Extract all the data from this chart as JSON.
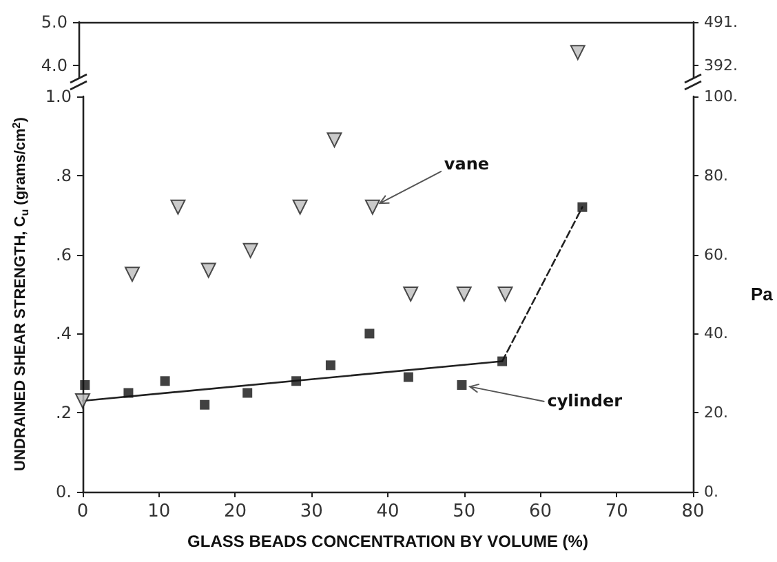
{
  "chart_data": [
    {
      "type": "scatter",
      "marker": "triangle",
      "series": [
        {
          "color": "#bdbdbd",
          "x": [
            65
          ],
          "values": [
            4.3
          ]
        }
      ],
      "xlim": [
        0,
        80
      ],
      "xticks": [
        0,
        10,
        20,
        30,
        40,
        50,
        60,
        70,
        80
      ],
      "ylim": [
        3.7,
        5.0
      ],
      "yticks": [
        {
          "value": 4.0,
          "label": "4.0"
        },
        {
          "value": 5.0,
          "label": "5.0"
        }
      ],
      "y2lim": [
        362,
        491
      ],
      "y2ticks": [
        {
          "value": 392,
          "label": "392."
        },
        {
          "value": 491,
          "label": "491."
        }
      ],
      "tick_labels": "y"
    },
    {
      "type": "scatter",
      "xlabel": "GLASS BEADS CONCENTRATION BY VOLUME (%)",
      "ylabel": "UNDRAINED SHEAR STRENGTH, C$_{u}$ (grams/cm$^{2}$)",
      "y2label": "Pa",
      "series": [
        {
          "color": "#bdbdbd",
          "marker": "triangle",
          "x": [
            0,
            6.5,
            12.5,
            16.5,
            22,
            28.5,
            33,
            38,
            43,
            50,
            55.4
          ],
          "values": [
            0.23,
            0.55,
            0.72,
            0.56,
            0.61,
            0.72,
            0.89,
            0.72,
            0.5,
            0.5,
            0.5
          ]
        },
        {
          "color": "#111111",
          "marker": "square",
          "x": [
            0.3,
            6,
            10.8,
            16,
            21.6,
            28,
            32.5,
            37.6,
            42.7,
            49.7,
            55,
            65.5
          ],
          "values": [
            0.27,
            0.25,
            0.28,
            0.22,
            0.25,
            0.28,
            0.32,
            0.4,
            0.29,
            0.27,
            0.33,
            0.72
          ]
        },
        {
          "type": "line",
          "color": "#222222",
          "marker": "none",
          "line_style": "solid",
          "x": [
            0,
            55
          ],
          "values": [
            0.23,
            0.33
          ]
        },
        {
          "type": "line",
          "color": "#222222",
          "marker": "none",
          "line_style": "dashed",
          "x": [
            55,
            65.5
          ],
          "values": [
            0.33,
            0.72
          ]
        }
      ],
      "annotations": [
        {
          "text": "vane",
          "x": 38,
          "y": 0.72
        },
        {
          "text": "cylinder",
          "x": 49.7,
          "y": 0.27
        }
      ],
      "xlim": [
        0,
        80
      ],
      "xticks": [
        0,
        10,
        20,
        30,
        40,
        50,
        60,
        70,
        80
      ],
      "ylim": [
        0,
        1.0
      ],
      "yticks": [
        {
          "value": 0,
          "label": "0."
        },
        {
          "value": 0.2,
          "label": ".2"
        },
        {
          "value": 0.4,
          "label": ".4"
        },
        {
          "value": 0.6,
          "label": ".6"
        },
        {
          "value": 0.8,
          "label": ".8"
        },
        {
          "value": 1.0,
          "label": "1.0"
        }
      ],
      "y2lim": [
        0,
        100
      ],
      "y2ticks": [
        {
          "value": 0,
          "label": "0."
        },
        {
          "value": 20,
          "label": "20."
        },
        {
          "value": 40,
          "label": "40."
        },
        {
          "value": 60,
          "label": "60."
        },
        {
          "value": 80,
          "label": "80."
        },
        {
          "value": 100,
          "label": "100."
        }
      ]
    }
  ]
}
